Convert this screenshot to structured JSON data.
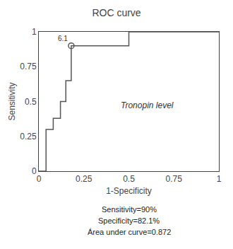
{
  "chart_data": {
    "type": "line",
    "title": "ROC curve",
    "xlabel": "1-Specificity",
    "ylabel": "Sensitivity",
    "series": [
      {
        "type": "line",
        "color": "#555555",
        "x": [
          0,
          0.04,
          0.04,
          0.08,
          0.08,
          0.12,
          0.12,
          0.15,
          0.15,
          0.18,
          0.18,
          0.5,
          0.5,
          1.0
        ],
        "values": [
          0,
          0,
          0.3,
          0.3,
          0.38,
          0.38,
          0.5,
          0.5,
          0.65,
          0.65,
          0.9,
          0.9,
          1.0,
          1.0
        ]
      },
      {
        "type": "scatter",
        "color": "#555555",
        "marker": "circle-open",
        "x": [
          0.18
        ],
        "values": [
          0.9
        ]
      }
    ],
    "annotations": [
      {
        "text": "6.1",
        "x": 0.18,
        "y": 0.9
      },
      {
        "text": "Tronopin level",
        "x": 0.6,
        "y": 0.47
      }
    ],
    "notes": [
      "Sensitivity=90%",
      "Specificity=82.1%",
      "Área under curve=0.872"
    ],
    "xlim": [
      0,
      1
    ],
    "ylim": [
      0,
      1
    ],
    "xticks": [
      0,
      0.25,
      0.5,
      0.75,
      1
    ],
    "yticks": [
      0,
      0.25,
      0.5,
      0.75,
      1
    ],
    "grid": false
  }
}
